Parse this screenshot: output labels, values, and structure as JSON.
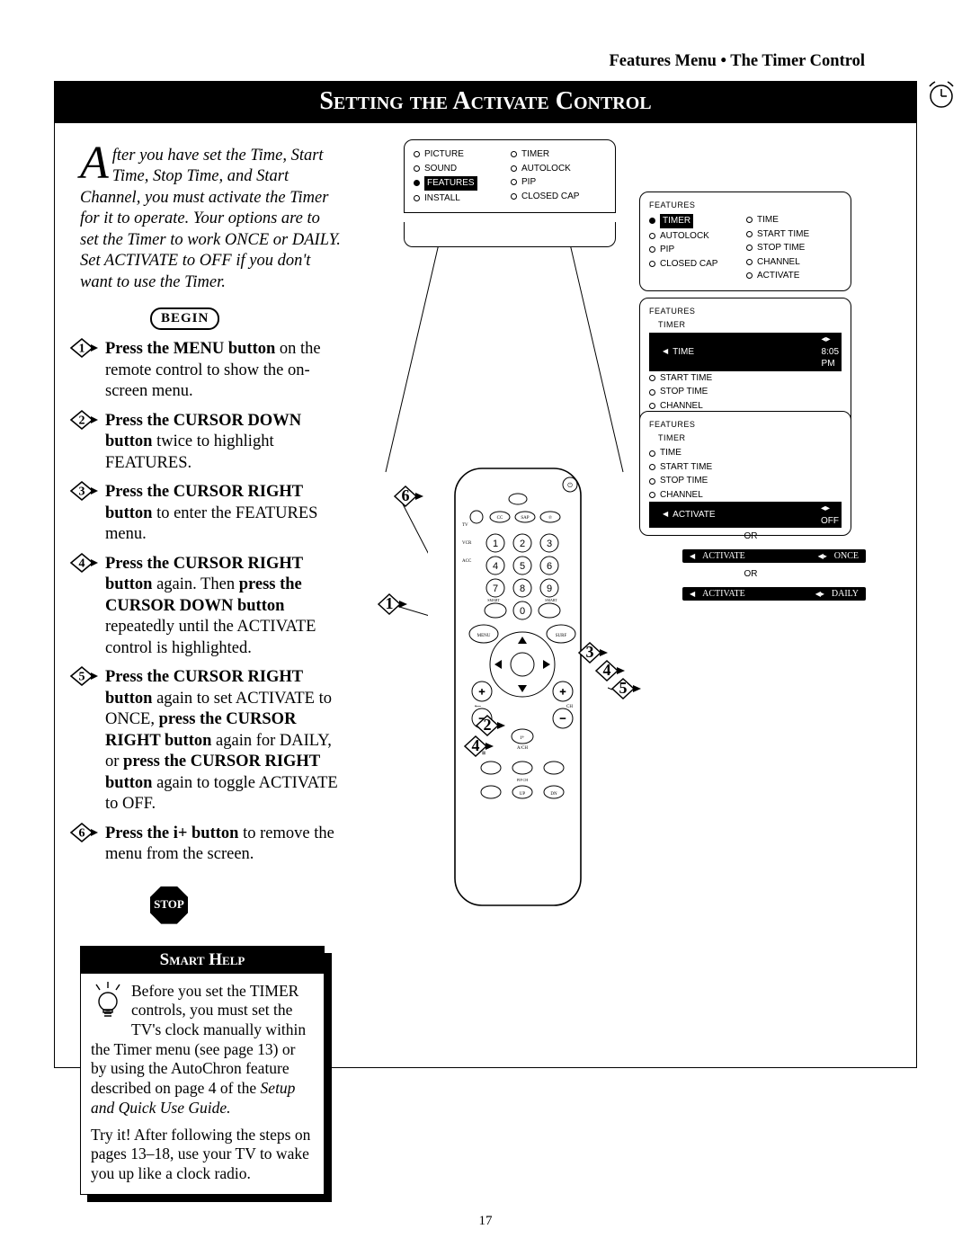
{
  "breadcrumb": "Features Menu • The Timer Control",
  "title": "Setting the Activate Control",
  "intro_dropcap": "A",
  "intro": "fter you have set the Time, Start Time, Stop Time, and Start Channel, you must activate the Timer for it to operate. Your options are to set the Timer to work ONCE or DAILY. Set ACTIVATE to OFF if you don't want to use the Timer.",
  "begin_label": "BEGIN",
  "steps": [
    {
      "n": "1",
      "bold": "Press the MENU button",
      "rest": " on the remote control to show the on-screen menu."
    },
    {
      "n": "2",
      "bold": "Press the CURSOR DOWN button",
      "rest": " twice to highlight FEATURES."
    },
    {
      "n": "3",
      "bold": "Press the CURSOR RIGHT button",
      "rest": " to enter the FEATURES menu."
    },
    {
      "n": "4",
      "bold": "Press the CURSOR RIGHT button",
      "rest": " again. Then ",
      "bold2": "press the CURSOR DOWN button",
      "rest2": " repeatedly until the ACTIVATE control is highlighted."
    },
    {
      "n": "5",
      "bold": "Press the CURSOR RIGHT button",
      "rest": " again to set ACTIVATE to ONCE, ",
      "bold2": "press the CURSOR RIGHT button",
      "rest2": " again for DAILY, or ",
      "bold3": "press the CURSOR RIGHT button",
      "rest3": " again to toggle ACTIVATE to OFF."
    },
    {
      "n": "6",
      "bold": "Press the i+ button",
      "rest": " to remove the menu from the screen."
    }
  ],
  "stop_label": "STOP",
  "smarthelp": {
    "title": "Smart Help",
    "p1": "Before you set the TIMER controls, you must set the TV's clock manually within the Timer menu (see page 13) or by using the AutoChron feature described on page 4 of the ",
    "p1_em": "Setup and Quick Use Guide.",
    "p2": "Try it! After following the steps on pages 13–18, use your TV to wake you up like a clock radio."
  },
  "page_num": "17",
  "panelA": {
    "left": [
      "PICTURE",
      "SOUND",
      "FEATURES",
      "INSTALL"
    ],
    "current": "FEATURES",
    "right": [
      "TIMER",
      "AUTOLOCK",
      "PIP",
      "CLOSED CAP"
    ]
  },
  "panelB": {
    "header": "FEATURES",
    "left": [
      "TIMER",
      "AUTOLOCK",
      "PIP",
      "CLOSED CAP"
    ],
    "current": "TIMER",
    "right": [
      "TIME",
      "START TIME",
      "STOP TIME",
      "CHANNEL",
      "ACTIVATE"
    ]
  },
  "panelC": {
    "header": "FEATURES",
    "sub": "TIMER",
    "items": [
      "TIME",
      "START TIME",
      "STOP TIME",
      "CHANNEL",
      "ACTIVATE"
    ],
    "current": "TIME",
    "value": "8:05 PM"
  },
  "panelD": {
    "header": "FEATURES",
    "sub": "TIMER",
    "items": [
      "TIME",
      "START TIME",
      "STOP TIME",
      "CHANNEL",
      "ACTIVATE"
    ],
    "current": "ACTIVATE",
    "value": "OFF"
  },
  "bar_once": {
    "label": "ACTIVATE",
    "value": "ONCE"
  },
  "bar_daily": {
    "label": "ACTIVATE",
    "value": "DAILY"
  },
  "or_label": "OR",
  "callouts": [
    "1",
    "2",
    "3",
    "4",
    "5",
    "6"
  ],
  "colors": {
    "black": "#000",
    "white": "#fff"
  }
}
